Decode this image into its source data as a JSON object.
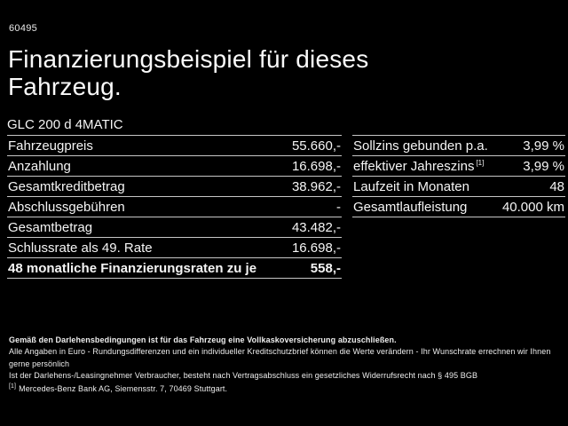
{
  "page": {
    "stock_code": "60495",
    "title_line1": "Finanzierungsbeispiel für dieses",
    "title_line2": "Fahrzeug.",
    "model_name": "GLC 200 d 4MATIC"
  },
  "left_table": {
    "rows": [
      {
        "label": "Fahrzeugpreis",
        "value": "55.660,-",
        "bold": false
      },
      {
        "label": "Anzahlung",
        "value": "16.698,-",
        "bold": false
      },
      {
        "label": "Gesamtkreditbetrag",
        "value": "38.962,-",
        "bold": false
      },
      {
        "label": "Abschlussgebühren",
        "value": "-",
        "bold": false
      },
      {
        "label": "Gesamtbetrag",
        "value": "43.482,-",
        "bold": false
      },
      {
        "label": "Schlussrate als 49. Rate",
        "value": "16.698,-",
        "bold": false
      },
      {
        "label": "48 monatliche Finanzierungsraten zu je",
        "value": "558,-",
        "bold": true
      }
    ]
  },
  "right_table": {
    "rows": [
      {
        "label": "Sollzins gebunden p.a.",
        "label_sup": "",
        "value": "3,99 %",
        "bold": false
      },
      {
        "label": "effektiver Jahreszins",
        "label_sup": "[1]",
        "value": "3,99 %",
        "bold": false
      },
      {
        "label": "Laufzeit in Monaten",
        "label_sup": "",
        "value": "48",
        "bold": false
      },
      {
        "label": "Gesamtlaufleistung",
        "label_sup": "",
        "value": "40.000 km",
        "bold": false
      }
    ]
  },
  "footnotes": {
    "line1": "Gemäß den Darlehensbedingungen ist für das Fahrzeug eine Vollkaskoversicherung abzuschließen.",
    "line2": "Alle Angaben in Euro - Rundungsdifferenzen und ein individueller Kreditschutzbrief können die Werte verändern - Ihr Wunschrate errechnen wir Ihnen gerne persönlich",
    "line3": "Ist der Darlehens-/Leasingnehmer Verbraucher, besteht nach Vertragsabschluss ein gesetzliches Widerrufsrecht nach § 495 BGB",
    "line4_sup": "[1]",
    "line4": "Mercedes-Benz Bank AG, Siemensstr. 7, 70469 Stuttgart."
  },
  "colors": {
    "background": "#000000",
    "text": "#f5f5f5",
    "divider": "#c6c6c6"
  }
}
